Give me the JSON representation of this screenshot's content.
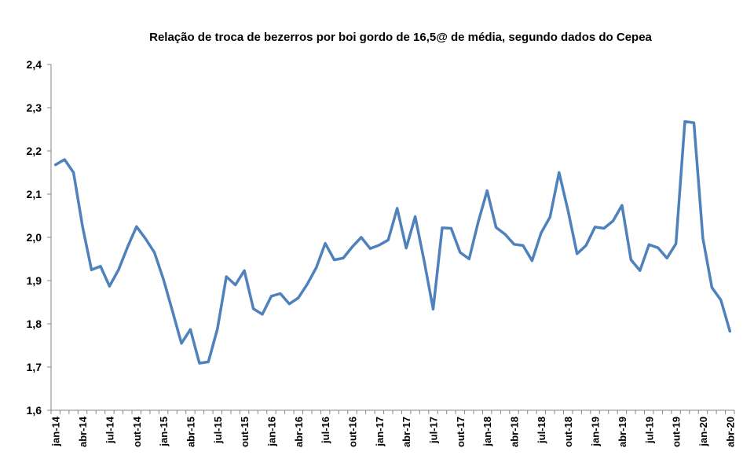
{
  "chart_data": {
    "type": "line",
    "title": "Relação de troca de bezerros por boi gordo de 16,5@ de média, segundo dados do Cepea",
    "xlabel": "",
    "ylabel": "",
    "ylim": [
      1.6,
      2.4
    ],
    "yticks": [
      "1,6",
      "1,7",
      "1,8",
      "1,9",
      "2,0",
      "2,1",
      "2,2",
      "2,3",
      "2,4"
    ],
    "grid": false,
    "x": [
      "jan-14",
      "fev-14",
      "mar-14",
      "abr-14",
      "mai-14",
      "jun-14",
      "jul-14",
      "ago-14",
      "set-14",
      "out-14",
      "nov-14",
      "dez-14",
      "jan-15",
      "fev-15",
      "mar-15",
      "abr-15",
      "mai-15",
      "jun-15",
      "jul-15",
      "ago-15",
      "set-15",
      "out-15",
      "nov-15",
      "dez-15",
      "jan-16",
      "fev-16",
      "mar-16",
      "abr-16",
      "mai-16",
      "jun-16",
      "jul-16",
      "ago-16",
      "set-16",
      "out-16",
      "nov-16",
      "dez-16",
      "jan-17",
      "fev-17",
      "mar-17",
      "abr-17",
      "mai-17",
      "jun-17",
      "jul-17",
      "ago-17",
      "set-17",
      "out-17",
      "nov-17",
      "dez-17",
      "jan-18",
      "fev-18",
      "mar-18",
      "abr-18",
      "mai-18",
      "jun-18",
      "jul-18",
      "ago-18",
      "set-18",
      "out-18",
      "nov-18",
      "dez-18",
      "jan-19",
      "fev-19",
      "mar-19",
      "abr-19",
      "mai-19",
      "jun-19",
      "jul-19",
      "ago-19",
      "set-19",
      "out-19",
      "nov-19",
      "dez-19",
      "jan-20",
      "fev-20",
      "mar-20",
      "abr-20"
    ],
    "tick_labels": [
      "jan-14",
      "abr-14",
      "jul-14",
      "out-14",
      "jan-15",
      "abr-15",
      "jul-15",
      "out-15",
      "jan-16",
      "abr-16",
      "jul-16",
      "out-16",
      "jan-17",
      "abr-17",
      "jul-17",
      "out-17",
      "jan-18",
      "abr-18",
      "jul-18",
      "out-18",
      "jan-19",
      "abr-19",
      "jul-19",
      "out-19",
      "jan-20",
      "abr-20"
    ],
    "series": [
      {
        "name": "Relação de troca",
        "color": "#4F81BD",
        "values": [
          2.168,
          2.18,
          2.15,
          2.025,
          1.925,
          1.933,
          1.887,
          1.925,
          1.977,
          2.025,
          1.997,
          1.965,
          1.903,
          1.83,
          1.755,
          1.787,
          1.709,
          1.712,
          1.788,
          1.909,
          1.89,
          1.923,
          1.835,
          1.822,
          1.864,
          1.87,
          1.846,
          1.86,
          1.892,
          1.93,
          1.986,
          1.948,
          1.952,
          1.978,
          2.0,
          1.974,
          1.982,
          1.994,
          2.067,
          1.975,
          2.048,
          1.945,
          1.834,
          2.022,
          2.021,
          1.965,
          1.95,
          2.035,
          2.108,
          2.023,
          2.007,
          1.984,
          1.981,
          1.946,
          2.01,
          2.047,
          2.15,
          2.062,
          1.962,
          1.981,
          2.024,
          2.021,
          2.038,
          2.074,
          1.948,
          1.923,
          1.983,
          1.976,
          1.952,
          1.985,
          2.268,
          2.265,
          1.998,
          1.884,
          1.855,
          1.783
        ]
      }
    ]
  }
}
